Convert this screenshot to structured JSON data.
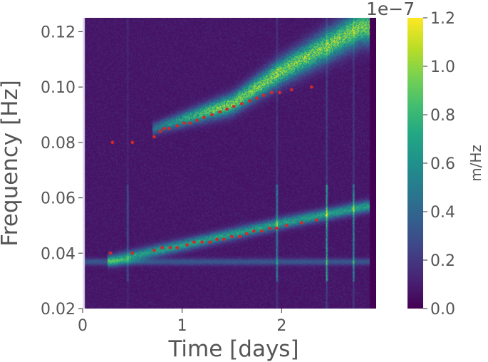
{
  "chart_data": {
    "type": "heatmap",
    "xlabel": "Time [days]",
    "ylabel": "Frequency [Hz]",
    "xlim": [
      0,
      2.95
    ],
    "ylim": [
      0.02,
      0.125
    ],
    "x_ticks": [
      0,
      1,
      2
    ],
    "x_tick_labels": [
      "0",
      "1",
      "2"
    ],
    "y_ticks": [
      0.02,
      0.04,
      0.06,
      0.08,
      0.1,
      0.12
    ],
    "y_tick_labels": [
      "0.02",
      "0.04",
      "0.06",
      "0.08",
      "0.10",
      "0.12"
    ],
    "colormap": "viridis",
    "colorbar": {
      "label": "m/Hz",
      "exponent_label": "1e−7",
      "range": [
        0.0,
        1.2
      ],
      "ticks": [
        0.0,
        0.2,
        0.4,
        0.6,
        0.8,
        1.0,
        1.2
      ],
      "tick_labels": [
        "0.0",
        "0.2",
        "0.4",
        "0.6",
        "0.8",
        "1.0",
        "1.2"
      ]
    },
    "data_extent_x": [
      0.02,
      2.88
    ],
    "background_level": 0.05,
    "features": {
      "constant_band": {
        "freq": 0.037,
        "level": 0.25
      },
      "primary_chirp": {
        "points": [
          [
            0.3,
            0.0375
          ],
          [
            1.0,
            0.043
          ],
          [
            2.0,
            0.051
          ],
          [
            2.85,
            0.057
          ]
        ],
        "level": 0.75
      },
      "secondary_chirp": {
        "points": [
          [
            0.7,
            0.085
          ],
          [
            1.5,
            0.094
          ],
          [
            2.0,
            0.106
          ],
          [
            2.8,
            0.122
          ]
        ],
        "level": 1.1
      },
      "vertical_streaks": [
        {
          "x": 0.45,
          "level": 0.35
        },
        {
          "x": 1.95,
          "level": 0.7
        },
        {
          "x": 2.45,
          "level": 0.9
        },
        {
          "x": 2.72,
          "level": 0.75
        }
      ]
    },
    "series": [
      {
        "type": "scatter",
        "color": "#d62728",
        "points": [
          [
            0.3,
            0.08
          ],
          [
            0.5,
            0.08
          ],
          [
            0.72,
            0.082
          ],
          [
            0.78,
            0.084
          ],
          [
            0.82,
            0.085
          ],
          [
            0.87,
            0.085
          ],
          [
            0.95,
            0.086
          ],
          [
            1.02,
            0.087
          ],
          [
            1.08,
            0.087
          ],
          [
            1.15,
            0.088
          ],
          [
            1.22,
            0.089
          ],
          [
            1.3,
            0.09
          ],
          [
            1.38,
            0.091
          ],
          [
            1.45,
            0.092
          ],
          [
            1.52,
            0.093
          ],
          [
            1.6,
            0.094
          ],
          [
            1.68,
            0.095
          ],
          [
            1.75,
            0.096
          ],
          [
            1.82,
            0.097
          ],
          [
            1.9,
            0.098
          ],
          [
            1.98,
            0.098
          ],
          [
            2.1,
            0.099
          ],
          [
            2.3,
            0.1
          ],
          [
            0.28,
            0.04
          ],
          [
            0.5,
            0.04
          ],
          [
            0.72,
            0.041
          ],
          [
            0.8,
            0.042
          ],
          [
            0.88,
            0.042
          ],
          [
            0.95,
            0.042
          ],
          [
            1.05,
            0.043
          ],
          [
            1.12,
            0.044
          ],
          [
            1.2,
            0.044
          ],
          [
            1.28,
            0.044
          ],
          [
            1.35,
            0.045
          ],
          [
            1.42,
            0.045
          ],
          [
            1.5,
            0.046
          ],
          [
            1.58,
            0.046
          ],
          [
            1.65,
            0.047
          ],
          [
            1.72,
            0.048
          ],
          [
            1.8,
            0.048
          ],
          [
            1.88,
            0.049
          ],
          [
            1.95,
            0.049
          ],
          [
            2.05,
            0.05
          ],
          [
            2.2,
            0.051
          ],
          [
            2.35,
            0.052
          ]
        ]
      }
    ]
  }
}
